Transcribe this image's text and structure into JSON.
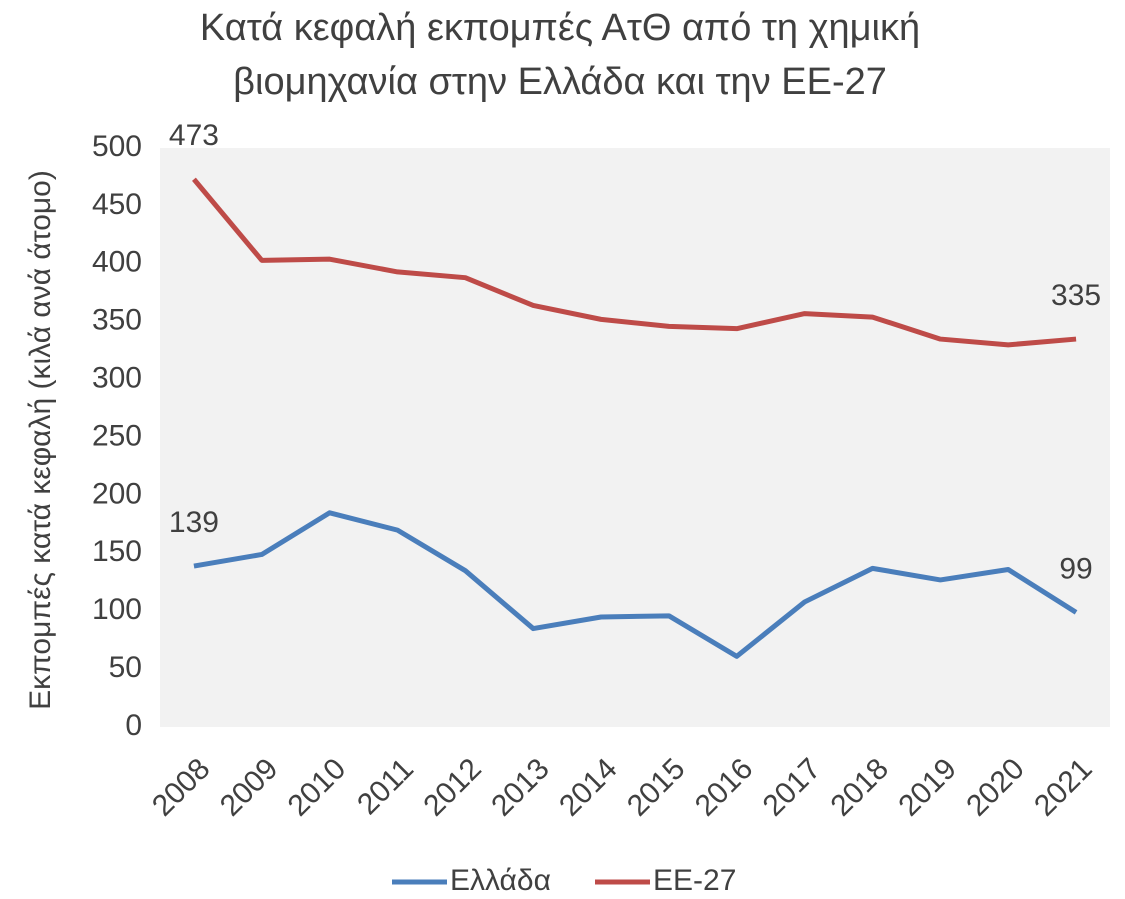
{
  "chart_data": {
    "type": "line",
    "title": [
      "Κατά κεφαλή εκπομπές ΑτΘ από τη χημική",
      "βιομηχανία στην Ελλάδα και την ΕΕ-27"
    ],
    "y_label": "Εκπομπές κατά κεφαλή (κιλά ανά άτομο)",
    "categories": [
      "2008",
      "2009",
      "2010",
      "2011",
      "2012",
      "2013",
      "2014",
      "2015",
      "2016",
      "2017",
      "2018",
      "2019",
      "2020",
      "2021"
    ],
    "series": [
      {
        "name": "Ελλάδα",
        "color": "#4a7ebb",
        "values": [
          139,
          149,
          185,
          170,
          135,
          85,
          95,
          96,
          61,
          108,
          137,
          127,
          136,
          99
        ]
      },
      {
        "name": "ΕΕ-27",
        "color": "#be4b48",
        "values": [
          473,
          403,
          404,
          393,
          388,
          364,
          352,
          346,
          344,
          357,
          354,
          335,
          330,
          335
        ]
      }
    ],
    "ylim": [
      0,
      500
    ],
    "yticks": [
      0,
      50,
      100,
      150,
      200,
      250,
      300,
      350,
      400,
      450,
      500
    ],
    "legend": "bottom"
  }
}
